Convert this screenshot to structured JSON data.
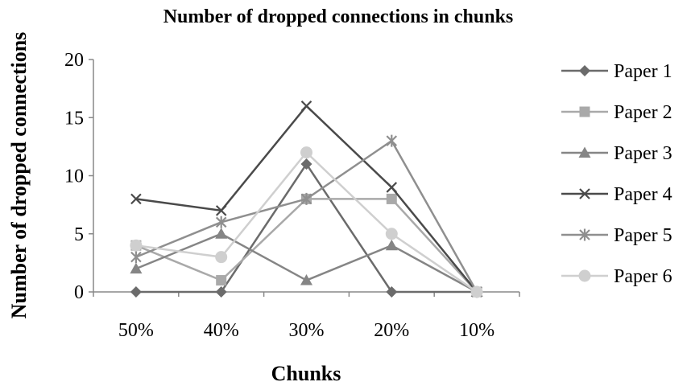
{
  "chart_data": {
    "type": "line",
    "title": "Number of dropped connections in chunks",
    "xlabel": "Chunks",
    "ylabel": "Number of dropped connections",
    "categories": [
      "50%",
      "40%",
      "30%",
      "20%",
      "10%"
    ],
    "ylim": [
      0,
      20
    ],
    "yticks": [
      "0",
      "5",
      "10",
      "15",
      "20"
    ],
    "grid": false,
    "legend_position": "right",
    "series": [
      {
        "name": "Paper 1",
        "values": [
          0,
          0,
          11,
          0,
          0
        ],
        "color": "#6b6b6b",
        "marker": "diamond"
      },
      {
        "name": "Paper 2",
        "values": [
          4,
          1,
          8,
          8,
          0
        ],
        "color": "#a9a9a9",
        "marker": "square"
      },
      {
        "name": "Paper 3",
        "values": [
          2,
          5,
          1,
          4,
          0
        ],
        "color": "#858585",
        "marker": "triangle"
      },
      {
        "name": "Paper 4",
        "values": [
          8,
          7,
          16,
          9,
          0
        ],
        "color": "#4a4a4a",
        "marker": "x"
      },
      {
        "name": "Paper 5",
        "values": [
          3,
          6,
          8,
          13,
          0
        ],
        "color": "#8f8f8f",
        "marker": "star"
      },
      {
        "name": "Paper 6",
        "values": [
          4,
          3,
          12,
          5,
          0
        ],
        "color": "#cfcfcf",
        "marker": "circle"
      }
    ]
  }
}
